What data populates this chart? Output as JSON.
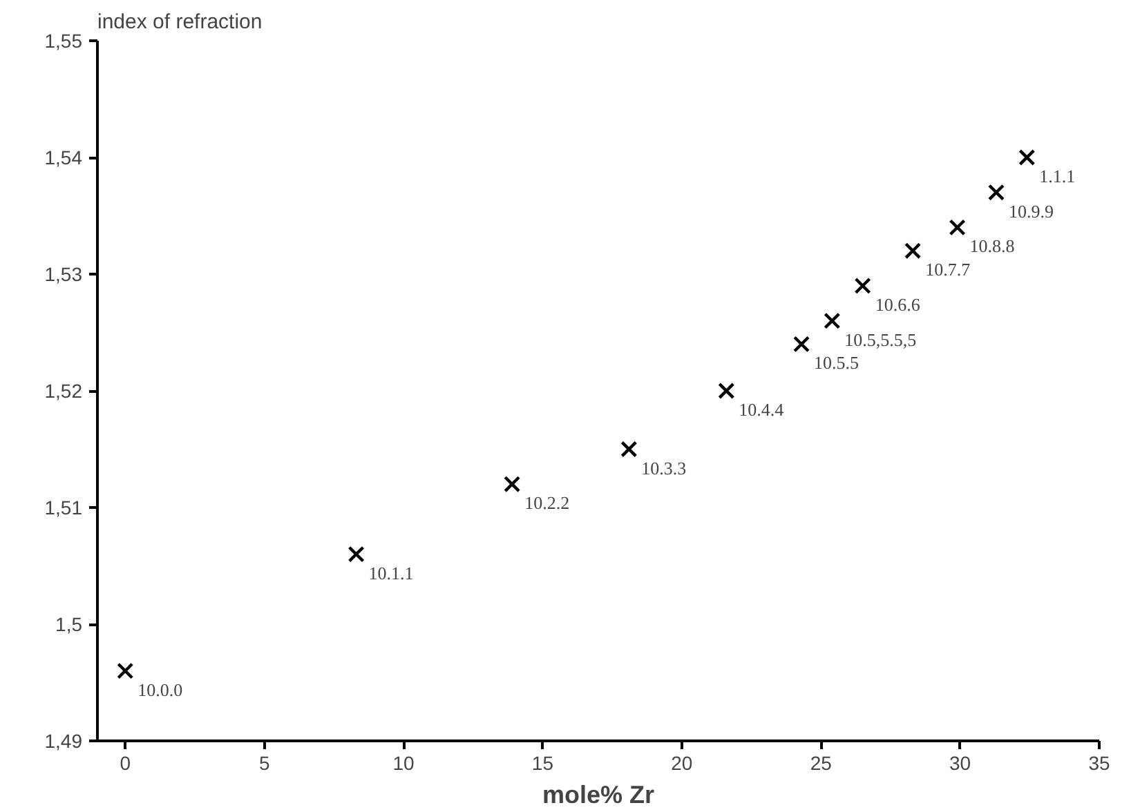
{
  "chart_data": {
    "type": "scatter",
    "xlabel": "mole% Zr",
    "ylabel": "index of refraction",
    "x": [
      0,
      8.3,
      13.9,
      18.1,
      21.6,
      24.3,
      25.4,
      26.5,
      28.3,
      29.9,
      31.3,
      32.4
    ],
    "values": [
      1.496,
      1.506,
      1.512,
      1.515,
      1.52,
      1.524,
      1.526,
      1.529,
      1.532,
      1.534,
      1.537,
      1.54
    ],
    "color": "#000000",
    "marker": "cross",
    "grid": false,
    "xlim": [
      -1,
      35
    ],
    "xticks": [
      0,
      5,
      10,
      15,
      20,
      25,
      30,
      35
    ],
    "ylim": [
      1.49,
      1.55
    ],
    "yticks": [
      {
        "value": 1.49,
        "label": "1,49"
      },
      {
        "value": 1.5,
        "label": "1,5"
      },
      {
        "value": 1.51,
        "label": "1,51"
      },
      {
        "value": 1.52,
        "label": "1,52"
      },
      {
        "value": 1.53,
        "label": "1,53"
      },
      {
        "value": 1.54,
        "label": "1,54"
      },
      {
        "value": 1.55,
        "label": "1,55"
      }
    ],
    "annotations": [
      {
        "text": "10.0.0",
        "x": 0,
        "y": 1.496
      },
      {
        "text": "10.1.1",
        "x": 8.3,
        "y": 1.506
      },
      {
        "text": "10.2.2",
        "x": 13.9,
        "y": 1.512
      },
      {
        "text": "10.3.3",
        "x": 18.1,
        "y": 1.515
      },
      {
        "text": "10.4.4",
        "x": 21.6,
        "y": 1.52
      },
      {
        "text": "10.5.5",
        "x": 24.3,
        "y": 1.524
      },
      {
        "text": "10.5,5.5,5",
        "x": 25.4,
        "y": 1.526
      },
      {
        "text": "10.6.6",
        "x": 26.5,
        "y": 1.529
      },
      {
        "text": "10.7.7",
        "x": 28.3,
        "y": 1.532
      },
      {
        "text": "10.8.8",
        "x": 29.9,
        "y": 1.534
      },
      {
        "text": "10.9.9",
        "x": 31.3,
        "y": 1.537
      },
      {
        "text": "1.1.1",
        "x": 32.4,
        "y": 1.54
      }
    ]
  }
}
